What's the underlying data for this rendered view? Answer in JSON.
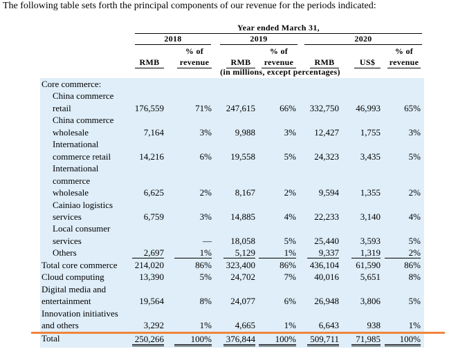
{
  "intro": "The following table sets forth the principal components of our revenue for the periods indicated:",
  "header": {
    "period": "Year ended March 31,",
    "years": [
      "2018",
      "2019",
      "2020"
    ],
    "columns": [
      [
        "RMB"
      ],
      [
        "% of",
        "revenue"
      ],
      [
        "RMB"
      ],
      [
        "% of",
        "revenue"
      ],
      [
        "RMB"
      ],
      [
        "US$"
      ],
      [
        "% of",
        "revenue"
      ]
    ],
    "note": "(in millions, except percentages)"
  },
  "rows": [
    {
      "label": [
        "Core commerce:"
      ],
      "cells": []
    },
    {
      "label": [
        "China commerce",
        "retail"
      ],
      "cells": [
        "176,559",
        "71%",
        "247,615",
        "66%",
        "332,750",
        "46,993",
        "65%"
      ]
    },
    {
      "label": [
        "China commerce",
        "wholesale"
      ],
      "cells": [
        "7,164",
        "3%",
        "9,988",
        "3%",
        "12,427",
        "1,755",
        "3%"
      ]
    },
    {
      "label": [
        "International",
        "commerce retail"
      ],
      "cells": [
        "14,216",
        "6%",
        "19,558",
        "5%",
        "24,323",
        "3,435",
        "5%"
      ]
    },
    {
      "label": [
        "International",
        "commerce",
        "wholesale"
      ],
      "cells": [
        "6,625",
        "2%",
        "8,167",
        "2%",
        "9,594",
        "1,355",
        "2%"
      ]
    },
    {
      "label": [
        "Cainiao logistics",
        "services"
      ],
      "cells": [
        "6,759",
        "3%",
        "14,885",
        "4%",
        "22,233",
        "3,140",
        "4%"
      ]
    },
    {
      "label": [
        "Local consumer",
        "services"
      ],
      "cells": [
        null,
        "—",
        "18,058",
        "5%",
        "25,440",
        "3,593",
        "5%"
      ]
    },
    {
      "label": [
        "Others"
      ],
      "cells": [
        "2,697",
        "1%",
        "5,129",
        "1%",
        "9,337",
        "1,319",
        "2%"
      ]
    },
    {
      "label": [
        "Total core commerce"
      ],
      "cells": [
        "214,020",
        "86%",
        "323,400",
        "86%",
        "436,104",
        "61,590",
        "86%"
      ]
    },
    {
      "label": [
        "Cloud computing"
      ],
      "cells": [
        "13,390",
        "5%",
        "24,702",
        "7%",
        "40,016",
        "5,651",
        "8%"
      ]
    },
    {
      "label": [
        "Digital media and",
        "entertainment"
      ],
      "cells": [
        "19,564",
        "8%",
        "24,077",
        "6%",
        "26,948",
        "3,806",
        "5%"
      ]
    },
    {
      "label": [
        "Innovation initiatives",
        "and others"
      ],
      "cells": [
        "3,292",
        "1%",
        "4,665",
        "1%",
        "6,643",
        "938",
        "1%"
      ]
    },
    {
      "label": [
        "Total"
      ],
      "cells": [
        "250,266",
        "100%",
        "376,844",
        "100%",
        "509,711",
        "71,985",
        "100%"
      ]
    }
  ]
}
